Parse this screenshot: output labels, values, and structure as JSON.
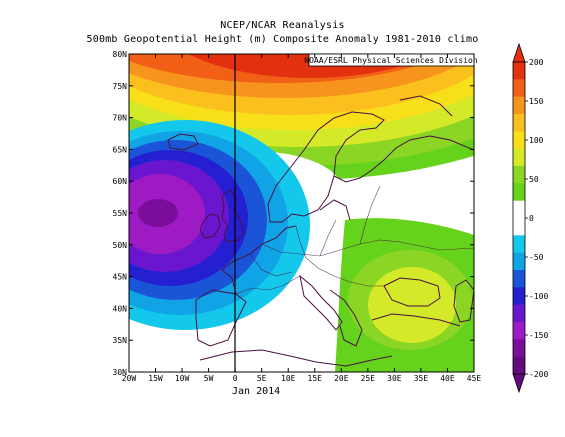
{
  "title": "NCEP/NCAR Reanalysis",
  "subtitle": "500mb Geopotential Height (m) Composite Anomaly 1981-2010 climo",
  "credit": "NOAA/ESRL Physical Sciences Division",
  "period": "Jan 2014",
  "map": {
    "lon_range": [
      -20,
      45
    ],
    "lat_range": [
      30,
      80
    ],
    "lat_labels": [
      "80N",
      "75N",
      "70N",
      "65N",
      "60N",
      "55N",
      "50N",
      "45N",
      "40N",
      "35N",
      "30N"
    ],
    "lon_labels": [
      "20W",
      "15W",
      "10W",
      "5W",
      "0",
      "5E",
      "10E",
      "15E",
      "20E",
      "25E",
      "30E",
      "35E",
      "40E",
      "45E"
    ]
  },
  "colorbar": {
    "labels": [
      "200",
      "150",
      "100",
      "50",
      "0",
      "-50",
      "-100",
      "-150",
      "-200"
    ],
    "colors": {
      "p200": "#e3300f",
      "p175": "#f26018",
      "p150": "#f7941d",
      "p125": "#fbbf1e",
      "p100": "#f7e01a",
      "p75": "#d4ea28",
      "p50": "#8bd624",
      "p25": "#65d21c",
      "zero": "#ffffff",
      "m25": "#14c8ec",
      "m50": "#10a4e6",
      "m75": "#1a55d8",
      "m100": "#2420d2",
      "m125": "#6a16cf",
      "m150": "#9d1ac4",
      "m175": "#7a0e9a",
      "m200": "#640a7e"
    }
  }
}
